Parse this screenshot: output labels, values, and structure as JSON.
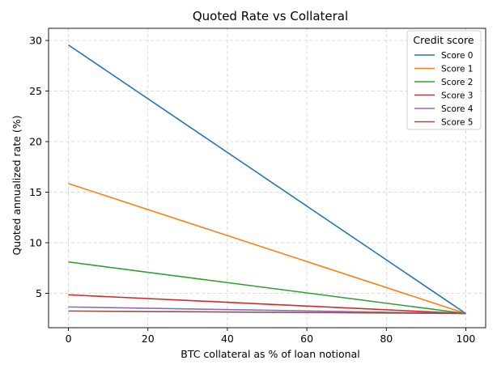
{
  "chart_data": {
    "type": "line",
    "title": "Quoted Rate vs Collateral",
    "xlabel": "BTC collateral as % of loan notional",
    "ylabel": "Quoted annualized rate (%)",
    "xlim": [
      -5,
      105
    ],
    "ylim": [
      1.6,
      31.2
    ],
    "xticks": [
      0,
      20,
      40,
      60,
      80,
      100
    ],
    "yticks": [
      5,
      10,
      15,
      20,
      25,
      30
    ],
    "grid": true,
    "legend": {
      "title": "Credit score",
      "position": "top-right"
    },
    "x": [
      0,
      100
    ],
    "series": [
      {
        "name": "Score 0",
        "color": "#1f77b4",
        "values": [
          29.55,
          3.0
        ]
      },
      {
        "name": "Score 1",
        "color": "#ff7f0e",
        "values": [
          15.85,
          3.0
        ]
      },
      {
        "name": "Score 2",
        "color": "#2ca02c",
        "values": [
          8.1,
          3.0
        ]
      },
      {
        "name": "Score 3",
        "color": "#d62728",
        "values": [
          4.85,
          3.0
        ]
      },
      {
        "name": "Score 4",
        "color": "#9467bd",
        "values": [
          3.65,
          3.0
        ]
      },
      {
        "name": "Score 5",
        "color": "#8c564b",
        "values": [
          3.25,
          3.0
        ]
      }
    ]
  }
}
